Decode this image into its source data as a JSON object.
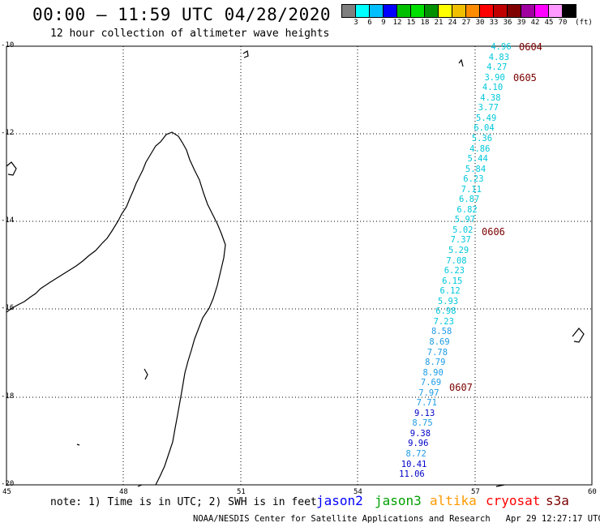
{
  "header": {
    "title": "00:00 – 11:59 UTC 04/28/2020",
    "subtitle": "12 hour collection of altimeter wave heights"
  },
  "colorbar": {
    "colors": [
      "#7f7f7f",
      "#00ffff",
      "#00bfff",
      "#0000ff",
      "#00c000",
      "#00e000",
      "#009000",
      "#ffff00",
      "#f0c000",
      "#ff8c00",
      "#ff0000",
      "#c00000",
      "#800000",
      "#a000a0",
      "#ff00ff",
      "#ff99ff",
      "#000000"
    ],
    "labels": [
      "3",
      "6",
      "9",
      "12",
      "15",
      "18",
      "21",
      "24",
      "27",
      "30",
      "33",
      "36",
      "39",
      "42",
      "45",
      "70",
      "(ft)"
    ]
  },
  "axes": {
    "lon_labels": [
      "45",
      "48",
      "51",
      "54",
      "57",
      "60"
    ],
    "lat_labels": [
      "-10",
      "-12",
      "-14",
      "-16",
      "-18",
      "-20"
    ]
  },
  "track": {
    "times": [
      "0604",
      "0605",
      "0606",
      "0607"
    ],
    "values": [
      "4.96",
      "4.83",
      "4.27",
      "3.90",
      "4.10",
      "4.38",
      "3.77",
      "5.49",
      "6.04",
      "5.36",
      "4.86",
      "5.44",
      "5.84",
      "6.23",
      "7.11",
      "6.87",
      "6.82",
      "5.97",
      "5.02",
      "7.37",
      "5.29",
      "7.08",
      "6.23",
      "6.15",
      "6.12",
      "5.93",
      "6.98",
      "7.23",
      "8.58",
      "8.69",
      "7.78",
      "8.79",
      "8.90",
      "7.69",
      "7.97",
      "7.71",
      "9.13",
      "8.75",
      "9.38",
      "9.96",
      "8.72",
      "10.41",
      "11.06"
    ],
    "colors": [
      "#00c8dc",
      "#1c9ce6",
      "#0000c8"
    ]
  },
  "legend": {
    "note": "note: 1) Time is in UTC; 2) SWH is in feet",
    "satellites": [
      {
        "name": "jason2",
        "color": "#0000ff"
      },
      {
        "name": "jason3",
        "color": "#00a000"
      },
      {
        "name": "altika",
        "color": "#ff9900"
      },
      {
        "name": "cryosat",
        "color": "#ff0000"
      },
      {
        "name": "s3a",
        "color": "#7a0000"
      }
    ]
  },
  "footer": {
    "credit": "NOAA/NESDIS Center for Satellite Applications and Research",
    "timestamp": "Apr 29 12:27:17 UTC 2020"
  }
}
